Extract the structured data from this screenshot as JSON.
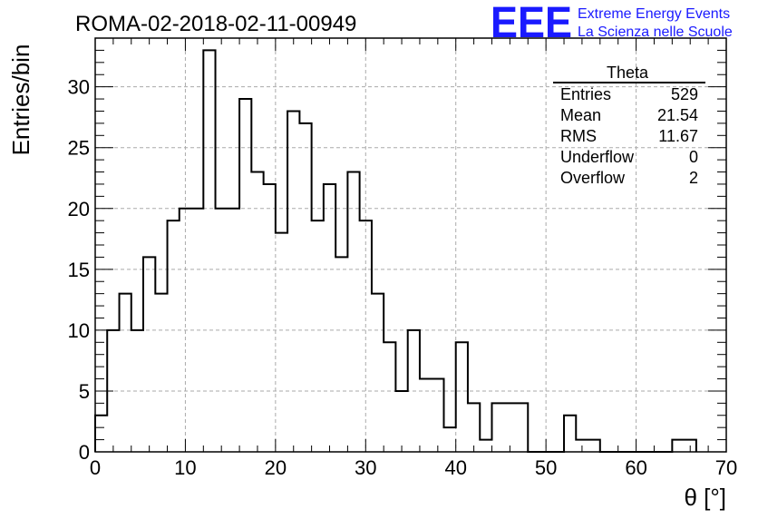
{
  "header": {
    "run_title": "ROMA-02-2018-02-11-00949",
    "logo_text": "EEE",
    "logo_line1": "Extreme Energy Events",
    "logo_line2": "La Scienza nelle Scuole",
    "logo_color": "#1a1aff"
  },
  "stats_box": {
    "title": "Theta",
    "rows": [
      {
        "label": "Entries",
        "value": "529"
      },
      {
        "label": "Mean",
        "value": "21.54"
      },
      {
        "label": "RMS",
        "value": "11.67"
      },
      {
        "label": "Underflow",
        "value": "0"
      },
      {
        "label": "Overflow",
        "value": "2"
      }
    ]
  },
  "chart_data": {
    "type": "bar",
    "style": "step-histogram",
    "xlabel": "θ [°]",
    "ylabel": "Entries/bin",
    "xlim": [
      0,
      70
    ],
    "ylim": [
      0,
      34
    ],
    "xticks": [
      0,
      10,
      20,
      30,
      40,
      50,
      60,
      70
    ],
    "yticks": [
      0,
      5,
      10,
      15,
      20,
      25,
      30
    ],
    "grid": true,
    "bin_edges": [
      0,
      1.33,
      2.67,
      4,
      5.33,
      6.67,
      8,
      9.33,
      10.67,
      12,
      13.33,
      14.67,
      16,
      17.33,
      18.67,
      20,
      21.33,
      22.67,
      24,
      25.33,
      26.67,
      28,
      29.33,
      30.67,
      32,
      33.33,
      34.67,
      36,
      37.33,
      38.67,
      40,
      41.33,
      42.67,
      44,
      45.33,
      46.67,
      48,
      49.33,
      50.67,
      52,
      53.33,
      54.67,
      56,
      57.33,
      58.67,
      60,
      61.33,
      62.67,
      64,
      65.33,
      66.67
    ],
    "values": [
      3,
      10,
      13,
      10,
      16,
      13,
      19,
      20,
      20,
      33,
      20,
      20,
      29,
      23,
      22,
      18,
      28,
      27,
      19,
      22,
      16,
      23,
      19,
      13,
      9,
      5,
      10,
      6,
      6,
      2,
      9,
      4,
      1,
      4,
      4,
      4,
      0,
      0,
      0,
      3,
      1,
      1,
      0,
      0,
      0,
      0,
      0,
      0,
      1,
      1
    ],
    "line_color": "#000000"
  }
}
